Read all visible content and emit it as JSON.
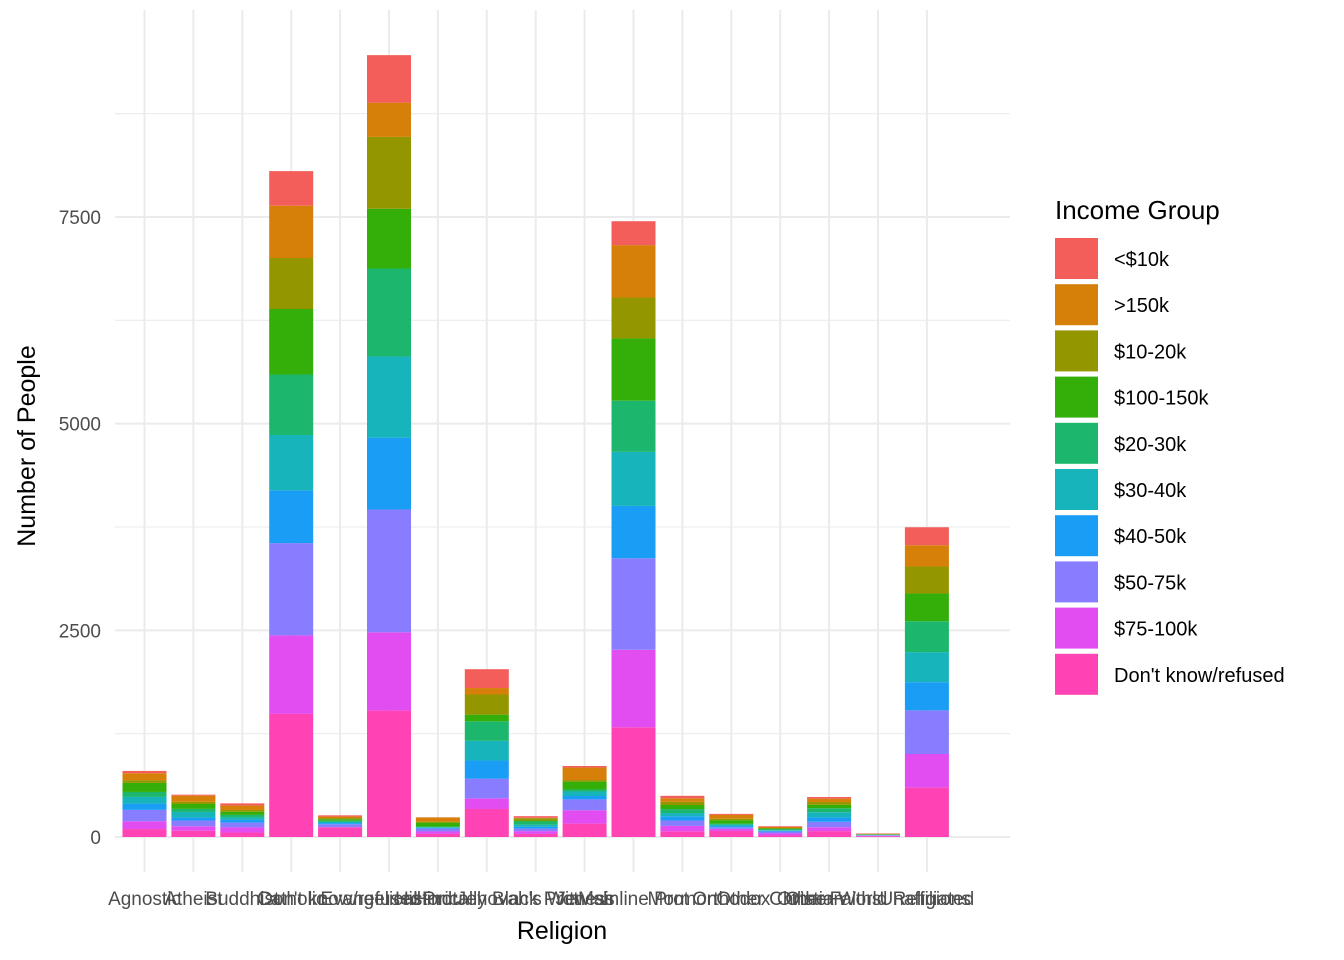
{
  "chart_data": {
    "type": "bar",
    "stacked": true,
    "title": "",
    "xlabel": "Religion",
    "ylabel": "Number of People",
    "ylim": [
      0,
      10000
    ],
    "yticks": [
      0,
      2500,
      5000,
      7500
    ],
    "ytick_labels": [
      "0",
      "2500",
      "5000",
      "7500"
    ],
    "grid": true,
    "legend": {
      "title": "Income Group",
      "placement": "right"
    },
    "categories": [
      "Agnostic",
      "Atheist",
      "Buddhist",
      "Catholic",
      "Don't know/refused",
      "Evangelical Prot",
      "Hindu",
      "Historically Black Prot",
      "Jehovah's Witness",
      "Jewish",
      "Mainline Prot",
      "Mormon",
      "Orthodox",
      "Other Christian",
      "Other Faiths",
      "Other World Religions",
      "Unaffiliated"
    ],
    "series": [
      {
        "name": "Don't know/refused",
        "color": "#FF42B4",
        "values": [
          96,
          76,
          54,
          1489,
          116,
          1529,
          37,
          339,
          37,
          162,
          1328,
          69,
          73,
          18,
          71,
          8,
          597
        ]
      },
      {
        "name": "$75-100k",
        "color": "#E14DF0",
        "values": [
          95,
          54,
          62,
          950,
          3,
          947,
          30,
          129,
          34,
          162,
          937,
          65,
          25,
          25,
          47,
          7,
          407
        ]
      },
      {
        "name": "$50-75k",
        "color": "#887DFF",
        "values": [
          137,
          70,
          58,
          1116,
          35,
          1486,
          34,
          238,
          30,
          131,
          1107,
          66,
          19,
          22,
          66,
          6,
          528
        ]
      },
      {
        "name": "$40-50k",
        "color": "#1A9EF5",
        "values": [
          76,
          35,
          33,
          638,
          14,
          869,
          9,
          219,
          24,
          41,
          633,
          50,
          15,
          10,
          53,
          1,
          341
        ]
      },
      {
        "name": "$30-40k",
        "color": "#18B4BB",
        "values": [
          81,
          68,
          30,
          670,
          15,
          982,
          9,
          238,
          24,
          54,
          654,
          40,
          17,
          7,
          63,
          3,
          363
        ]
      },
      {
        "name": "$20-30k",
        "color": "#1CB76C",
        "values": [
          60,
          37,
          30,
          732,
          15,
          1064,
          7,
          236,
          39,
          25,
          619,
          48,
          13,
          14,
          48,
          4,
          374
        ]
      },
      {
        "name": "$100-150k",
        "color": "#34AF0A",
        "values": [
          109,
          59,
          39,
          792,
          17,
          723,
          48,
          81,
          11,
          95,
          753,
          49,
          42,
          6,
          41,
          4,
          335
        ]
      },
      {
        "name": "$10-20k",
        "color": "#949600",
        "values": [
          34,
          27,
          21,
          617,
          14,
          869,
          9,
          244,
          27,
          19,
          495,
          40,
          17,
          7,
          34,
          2,
          327
        ]
      },
      {
        "name": ">150k",
        "color": "#D6800A",
        "values": [
          84,
          74,
          53,
          633,
          18,
          414,
          54,
          78,
          6,
          151,
          634,
          42,
          46,
          12,
          41,
          4,
          258
        ]
      },
      {
        "name": "<$10k",
        "color": "#F35E5A",
        "values": [
          27,
          12,
          27,
          418,
          15,
          575,
          1,
          228,
          20,
          19,
          289,
          29,
          13,
          9,
          20,
          5,
          217
        ]
      }
    ]
  }
}
